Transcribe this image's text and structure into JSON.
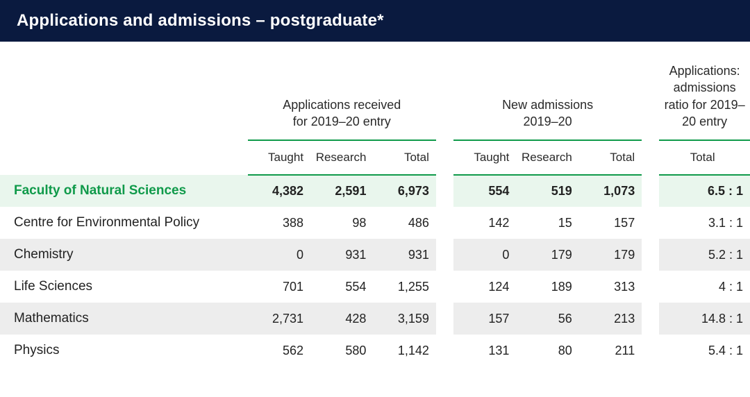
{
  "title": "Applications and admissions – postgraduate*",
  "group_headers": {
    "apps": "Applications received\nfor  2019–20 entry",
    "adm": "New admissions\n2019–20",
    "ratio": "Applications: admissions ratio for 2019–20 entry"
  },
  "sub_headers": {
    "taught": "Taught",
    "research": "Research",
    "total": "Total"
  },
  "colors": {
    "header_bg": "#0a1a3f",
    "header_text": "#ffffff",
    "accent_green": "#0f9a4a",
    "faculty_bg": "#e9f6ed",
    "alt_row_bg": "#ededed",
    "text": "#222222"
  },
  "rows": [
    {
      "label": "Faculty of Natural Sciences",
      "apps_taught": "4,382",
      "apps_research": "2,591",
      "apps_total": "6,973",
      "adm_taught": "554",
      "adm_research": "519",
      "adm_total": "1,073",
      "ratio": "6.5 : 1",
      "faculty": true
    },
    {
      "label": "Centre for Environmental Policy",
      "apps_taught": "388",
      "apps_research": "98",
      "apps_total": "486",
      "adm_taught": "142",
      "adm_research": "15",
      "adm_total": "157",
      "ratio": "3.1 : 1"
    },
    {
      "label": "Chemistry",
      "apps_taught": "0",
      "apps_research": "931",
      "apps_total": "931",
      "adm_taught": "0",
      "adm_research": "179",
      "adm_total": "179",
      "ratio": "5.2 : 1",
      "alt": true
    },
    {
      "label": "Life Sciences",
      "apps_taught": "701",
      "apps_research": "554",
      "apps_total": "1,255",
      "adm_taught": "124",
      "adm_research": "189",
      "adm_total": "313",
      "ratio": "4 : 1"
    },
    {
      "label": "Mathematics",
      "apps_taught": "2,731",
      "apps_research": "428",
      "apps_total": "3,159",
      "adm_taught": "157",
      "adm_research": "56",
      "adm_total": "213",
      "ratio": "14.8 : 1",
      "alt": true
    },
    {
      "label": "Physics",
      "apps_taught": "562",
      "apps_research": "580",
      "apps_total": "1,142",
      "adm_taught": "131",
      "adm_research": "80",
      "adm_total": "211",
      "ratio": "5.4 : 1"
    }
  ]
}
